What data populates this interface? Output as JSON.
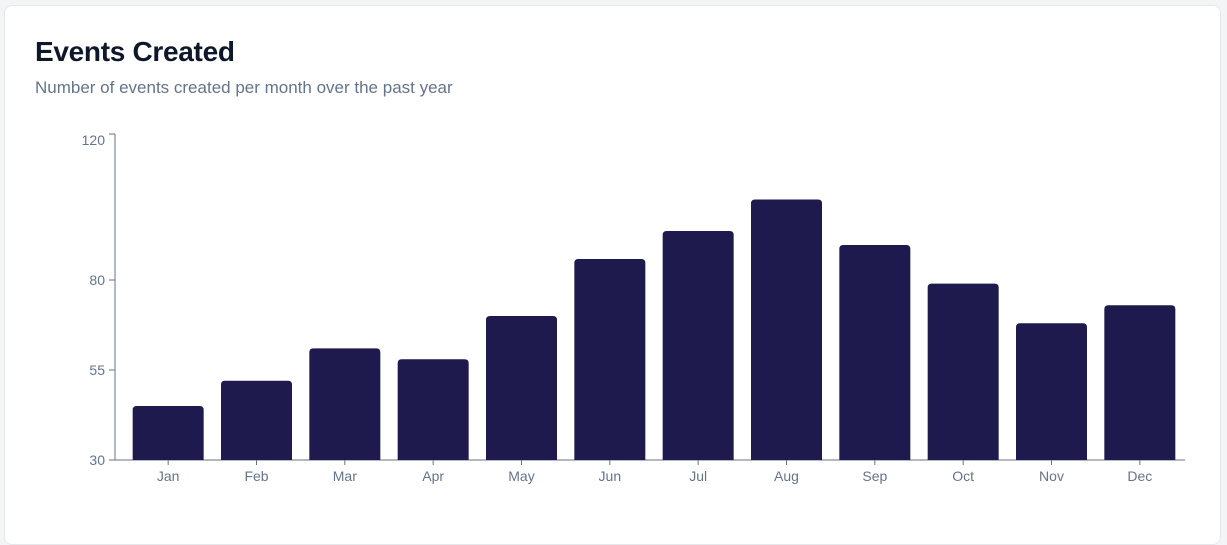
{
  "header": {
    "title": "Events Created",
    "subtitle": "Number of events created per month over the past year"
  },
  "colors": {
    "bar": "#1e1a4d",
    "axis": "#6b7280",
    "tick_text": "#64748b"
  },
  "chart_data": {
    "type": "bar",
    "title": "Events Created",
    "subtitle": "Number of events created per month over the past year",
    "xlabel": "",
    "ylabel": "",
    "categories": [
      "Jan",
      "Feb",
      "Mar",
      "Apr",
      "May",
      "Jun",
      "Jul",
      "Aug",
      "Sep",
      "Oct",
      "Nov",
      "Dec"
    ],
    "values": [
      45,
      52,
      61,
      58,
      70,
      86,
      94,
      103,
      90,
      79,
      68,
      73
    ],
    "ylim": [
      30,
      120
    ],
    "yticks": [
      30,
      55,
      80,
      120
    ],
    "grid": false,
    "legend": "none"
  }
}
